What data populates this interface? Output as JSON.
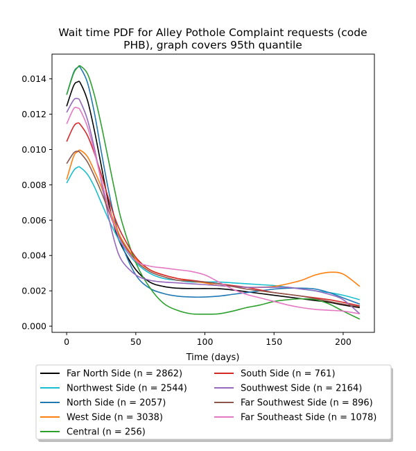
{
  "chart_data": {
    "type": "line",
    "title": "Wait time PDF for Alley Pothole Complaint  requests (code PHB), graph covers 95th quantile",
    "title_lines": [
      "Wait time PDF for Alley Pothole Complaint  requests (code",
      "PHB), graph covers 95th quantile"
    ],
    "xlabel": "Time (days)",
    "ylabel": "",
    "xlim": [
      -10.6,
      222.6
    ],
    "ylim": [
      -0.00035,
      0.0154
    ],
    "xticks": [
      0,
      50,
      100,
      150,
      200
    ],
    "xtick_labels": [
      "0",
      "50",
      "100",
      "150",
      "200"
    ],
    "yticks": [
      0.0,
      0.002,
      0.004,
      0.006,
      0.008,
      0.01,
      0.012,
      0.014
    ],
    "ytick_labels": [
      "0.000",
      "0.002",
      "0.004",
      "0.006",
      "0.008",
      "0.010",
      "0.012",
      "0.014"
    ],
    "grid": false,
    "legend_position": "below plot, two columns",
    "x": [
      0,
      5,
      8,
      10,
      15,
      20,
      25,
      30,
      35,
      40,
      50,
      60,
      70,
      80,
      90,
      100,
      110,
      120,
      130,
      140,
      150,
      160,
      170,
      180,
      190,
      200,
      212
    ],
    "series": [
      {
        "name": "Far North Side (n = 2862)",
        "color": "#000000",
        "values": [
          0.01245,
          0.0136,
          0.01383,
          0.01375,
          0.0128,
          0.0111,
          0.0091,
          0.0071,
          0.0055,
          0.0045,
          0.0032,
          0.0025,
          0.00225,
          0.00215,
          0.00213,
          0.00213,
          0.00212,
          0.00205,
          0.00195,
          0.00185,
          0.00175,
          0.00165,
          0.00155,
          0.00145,
          0.00135,
          0.0012,
          0.00105
        ]
      },
      {
        "name": "Northwest Side (n = 2544)",
        "color": "#17becf",
        "values": [
          0.0081,
          0.0088,
          0.009,
          0.00898,
          0.0086,
          0.0079,
          0.007,
          0.0061,
          0.0053,
          0.0046,
          0.0036,
          0.003,
          0.0027,
          0.0026,
          0.0025,
          0.0025,
          0.0025,
          0.00245,
          0.0024,
          0.00235,
          0.0023,
          0.0022,
          0.0021,
          0.002,
          0.0019,
          0.00175,
          0.0015
        ]
      },
      {
        "name": "North Side (n = 2057)",
        "color": "#1f77b4",
        "values": [
          0.0131,
          0.01435,
          0.01465,
          0.01462,
          0.0138,
          0.0121,
          0.0099,
          0.0078,
          0.006,
          0.0046,
          0.0029,
          0.00215,
          0.00185,
          0.0017,
          0.00165,
          0.00165,
          0.0017,
          0.0018,
          0.0019,
          0.002,
          0.0021,
          0.00215,
          0.00215,
          0.0021,
          0.0019,
          0.0016,
          0.00125
        ]
      },
      {
        "name": "West Side (n = 3038)",
        "color": "#ff7f0e",
        "values": [
          0.0083,
          0.0096,
          0.00988,
          0.00995,
          0.0096,
          0.0088,
          0.0079,
          0.0068,
          0.0058,
          0.0049,
          0.0038,
          0.0032,
          0.0029,
          0.0027,
          0.00255,
          0.00245,
          0.0023,
          0.00225,
          0.0022,
          0.0022,
          0.00225,
          0.0024,
          0.0026,
          0.0029,
          0.00305,
          0.00295,
          0.00225
        ]
      },
      {
        "name": "Central (n = 256)",
        "color": "#2ca02c",
        "values": [
          0.0131,
          0.0143,
          0.01465,
          0.01472,
          0.0143,
          0.0131,
          0.0114,
          0.0095,
          0.0076,
          0.0059,
          0.0036,
          0.0022,
          0.0013,
          0.0009,
          0.0007,
          0.00068,
          0.0007,
          0.00085,
          0.00105,
          0.0012,
          0.0014,
          0.0015,
          0.00155,
          0.0015,
          0.00125,
          0.00085,
          0.0004
        ]
      },
      {
        "name": "South Side (n = 761)",
        "color": "#d62728",
        "values": [
          0.01045,
          0.0113,
          0.0115,
          0.0114,
          0.0108,
          0.0098,
          0.0086,
          0.0073,
          0.0061,
          0.0052,
          0.0039,
          0.0032,
          0.0029,
          0.0027,
          0.0026,
          0.0025,
          0.0024,
          0.0023,
          0.0022,
          0.00205,
          0.0019,
          0.0018,
          0.0017,
          0.0016,
          0.0015,
          0.00135,
          0.00115
        ]
      },
      {
        "name": "Southwest Side (n = 2164)",
        "color": "#9467bd",
        "values": [
          0.0121,
          0.0128,
          0.01288,
          0.0127,
          0.0117,
          0.0101,
          0.0082,
          0.0063,
          0.0047,
          0.0037,
          0.0029,
          0.0026,
          0.0025,
          0.00245,
          0.0024,
          0.00235,
          0.0023,
          0.00225,
          0.0022,
          0.0022,
          0.0022,
          0.0022,
          0.0021,
          0.002,
          0.0018,
          0.0015,
          0.0007
        ]
      },
      {
        "name": "Far Southwest Side (n = 896)",
        "color": "#8c564b",
        "values": [
          0.0092,
          0.0098,
          0.0099,
          0.0098,
          0.0093,
          0.0085,
          0.0076,
          0.0066,
          0.0056,
          0.0048,
          0.0037,
          0.0031,
          0.0028,
          0.0026,
          0.00255,
          0.0025,
          0.0024,
          0.00225,
          0.0021,
          0.002,
          0.0019,
          0.0018,
          0.0017,
          0.00155,
          0.0014,
          0.00125,
          0.0011
        ]
      },
      {
        "name": "Far Southeast Side (n = 1078)",
        "color": "#e377c2",
        "values": [
          0.01145,
          0.0123,
          0.01235,
          0.0122,
          0.0113,
          0.0099,
          0.0083,
          0.0068,
          0.0056,
          0.0047,
          0.0037,
          0.0034,
          0.0033,
          0.0032,
          0.0031,
          0.0029,
          0.0025,
          0.0021,
          0.0018,
          0.0016,
          0.0014,
          0.0012,
          0.00105,
          0.00095,
          0.0009,
          0.00085,
          0.0007
        ]
      }
    ]
  }
}
